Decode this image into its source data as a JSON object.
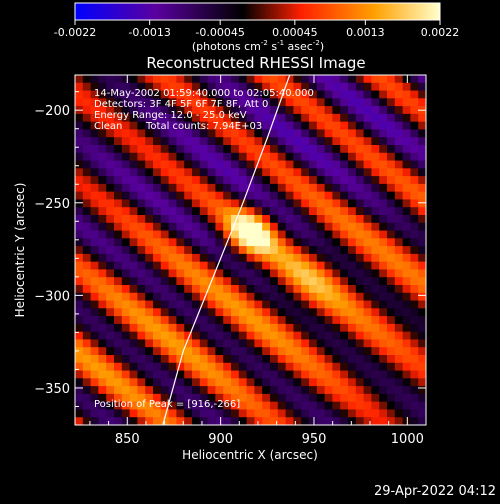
{
  "colorbar": {
    "ticks": [
      "-0.0022",
      "-0.0013",
      "-0.00045",
      "0.00045",
      "0.0013",
      "0.0022"
    ],
    "tick_values": [
      -0.0022,
      -0.0013,
      -0.00045,
      0.00045,
      0.0013,
      0.0022
    ],
    "range": [
      -0.0022,
      0.0022
    ],
    "units_text": "(photons cm",
    "units_sup1": "-2",
    "units_mid": " s",
    "units_sup2": "-1",
    "units_end": " asec",
    "units_sup3": "-2",
    "units_close": ")",
    "colormap_stops": [
      "#0000ff",
      "#5a00a0",
      "#000000",
      "#ff2000",
      "#ffa000",
      "#ffffcc"
    ]
  },
  "annotations": {
    "line1": "14-May-2002 01:59:40.000 to 02:05:40.000",
    "line2": "Detectors: 3F 4F 5F 6F 7F 8F, Att 0",
    "line3": "Energy Range: 12.0 - 25.0 keV",
    "line4_left": "Clean",
    "line4_right": "Total counts: 7.94E+03",
    "peak": "Position of Peak = [916,-266]"
  },
  "footer": {
    "timestamp": "29-Apr-2022 04:12"
  },
  "chart_data": {
    "type": "heatmap",
    "title": "Reconstructed RHESSI Image",
    "xlabel": "Heliocentric X (arcsec)",
    "ylabel": "Heliocentric Y (arcsec)",
    "xlim": [
      822,
      1010
    ],
    "ylim": [
      -370,
      -181
    ],
    "x_ticks": [
      850,
      900,
      950,
      1000
    ],
    "y_ticks": [
      -200,
      -250,
      -300,
      -350
    ],
    "x_tick_labels": [
      "850",
      "900",
      "950",
      "1000"
    ],
    "y_tick_labels": [
      "-200",
      "-250",
      "-300",
      "-350"
    ],
    "peak": {
      "x": 916,
      "y": -266,
      "value": 0.0022
    },
    "limb_curve": [
      {
        "x": 869,
        "y": -370
      },
      {
        "x": 880,
        "y": -330
      },
      {
        "x": 896,
        "y": -290
      },
      {
        "x": 912,
        "y": -250
      },
      {
        "x": 925,
        "y": -215
      },
      {
        "x": 937,
        "y": -181
      }
    ],
    "grid": false,
    "colors": {
      "background": "#000000",
      "text": "#ffffff",
      "limb": "#ffffff"
    }
  }
}
